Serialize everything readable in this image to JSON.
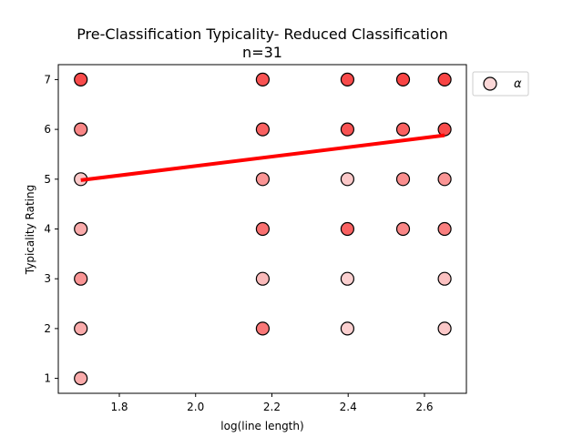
{
  "chart_data": {
    "type": "scatter",
    "title": "Pre-Classification Typicality- Reduced Classification",
    "subtitle": "n=31",
    "xlabel": "log(line length)",
    "ylabel": "Typicality Rating",
    "xlim": [
      1.64,
      2.71
    ],
    "ylim": [
      0.7,
      7.3
    ],
    "xticks": [
      1.8,
      2.0,
      2.2,
      2.4,
      2.6
    ],
    "yticks": [
      1,
      2,
      3,
      4,
      5,
      6,
      7
    ],
    "grid": false,
    "legend": {
      "placement": "top-right-outside",
      "entries": [
        "α"
      ]
    },
    "colors": {
      "marker_light": "#fbd7d7",
      "marker_dark": "#f84444",
      "regression": "#ff0000"
    },
    "points": [
      {
        "x": 1.699,
        "y": 7,
        "shade": 0.95
      },
      {
        "x": 1.699,
        "y": 6,
        "shade": 0.55
      },
      {
        "x": 1.699,
        "y": 5,
        "shade": 0.1
      },
      {
        "x": 1.699,
        "y": 4,
        "shade": 0.3
      },
      {
        "x": 1.699,
        "y": 3,
        "shade": 0.45
      },
      {
        "x": 1.699,
        "y": 2,
        "shade": 0.3
      },
      {
        "x": 1.699,
        "y": 1,
        "shade": 0.3
      },
      {
        "x": 2.176,
        "y": 7,
        "shade": 0.9
      },
      {
        "x": 2.176,
        "y": 6,
        "shade": 0.8
      },
      {
        "x": 2.176,
        "y": 5,
        "shade": 0.45
      },
      {
        "x": 2.176,
        "y": 4,
        "shade": 0.7
      },
      {
        "x": 2.176,
        "y": 3,
        "shade": 0.2
      },
      {
        "x": 2.176,
        "y": 2,
        "shade": 0.65
      },
      {
        "x": 2.398,
        "y": 7,
        "shade": 0.95
      },
      {
        "x": 2.398,
        "y": 6,
        "shade": 0.9
      },
      {
        "x": 2.398,
        "y": 5,
        "shade": 0.1
      },
      {
        "x": 2.398,
        "y": 4,
        "shade": 0.8
      },
      {
        "x": 2.398,
        "y": 3,
        "shade": 0.05
      },
      {
        "x": 2.398,
        "y": 2,
        "shade": 0.05
      },
      {
        "x": 2.544,
        "y": 7,
        "shade": 1.0
      },
      {
        "x": 2.544,
        "y": 6,
        "shade": 0.8
      },
      {
        "x": 2.544,
        "y": 5,
        "shade": 0.5
      },
      {
        "x": 2.544,
        "y": 4,
        "shade": 0.55
      },
      {
        "x": 2.653,
        "y": 7,
        "shade": 1.0
      },
      {
        "x": 2.653,
        "y": 6,
        "shade": 0.95
      },
      {
        "x": 2.653,
        "y": 5,
        "shade": 0.45
      },
      {
        "x": 2.653,
        "y": 4,
        "shade": 0.6
      },
      {
        "x": 2.653,
        "y": 3,
        "shade": 0.15
      },
      {
        "x": 2.653,
        "y": 2,
        "shade": 0.1
      }
    ],
    "regression": {
      "x": [
        1.699,
        2.653
      ],
      "y": [
        4.98,
        5.88
      ]
    }
  }
}
